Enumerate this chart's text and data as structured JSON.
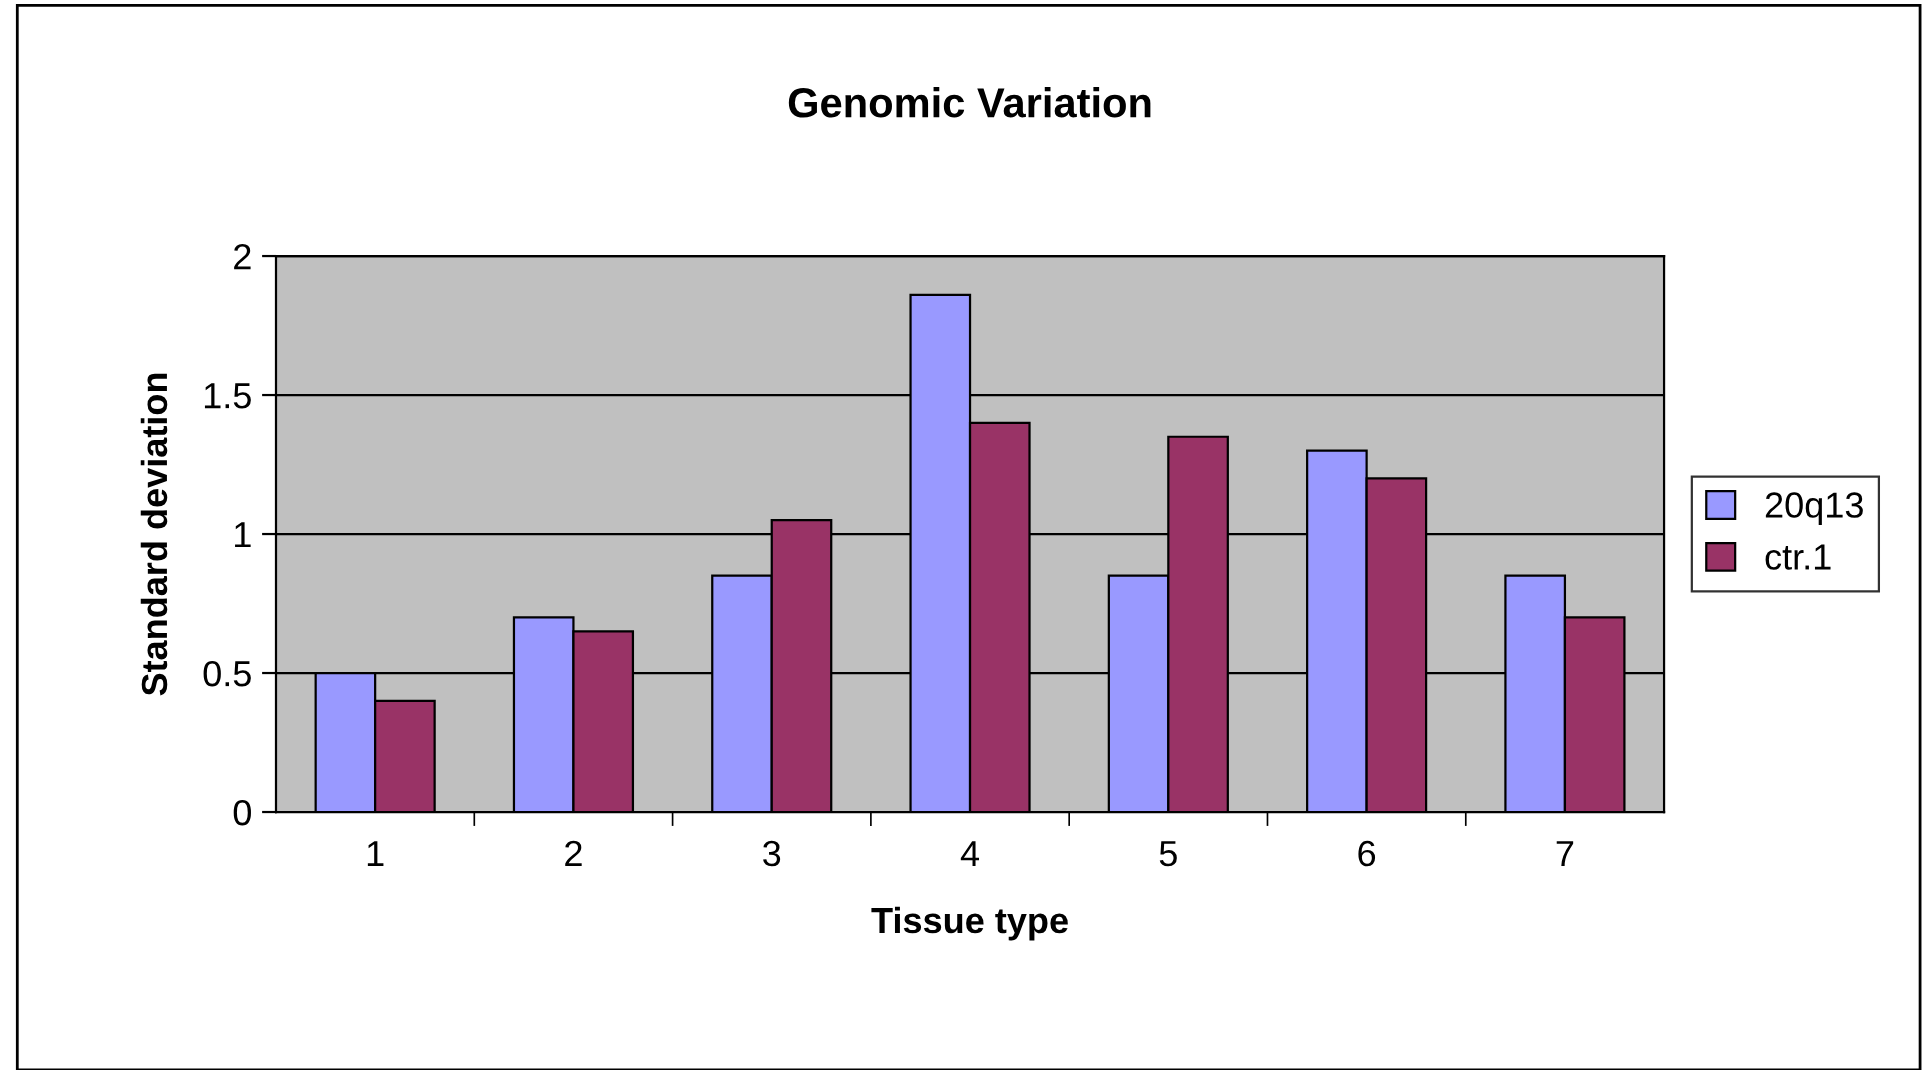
{
  "chart_data": {
    "type": "bar",
    "title": "Genomic Variation",
    "xlabel": "Tissue type",
    "ylabel": "Standard deviation",
    "categories": [
      "1",
      "2",
      "3",
      "4",
      "5",
      "6",
      "7"
    ],
    "series": [
      {
        "name": "20q13",
        "color": "#9999ff",
        "values": [
          0.5,
          0.7,
          0.85,
          1.86,
          0.85,
          1.3,
          0.85
        ]
      },
      {
        "name": "ctr.1",
        "color": "#993366",
        "values": [
          0.4,
          0.65,
          1.05,
          1.4,
          1.35,
          1.2,
          0.7
        ]
      }
    ],
    "ylim": [
      0,
      2
    ],
    "yticks": [
      0,
      0.5,
      1,
      1.5,
      2
    ],
    "grid": "y",
    "legend": "right"
  }
}
